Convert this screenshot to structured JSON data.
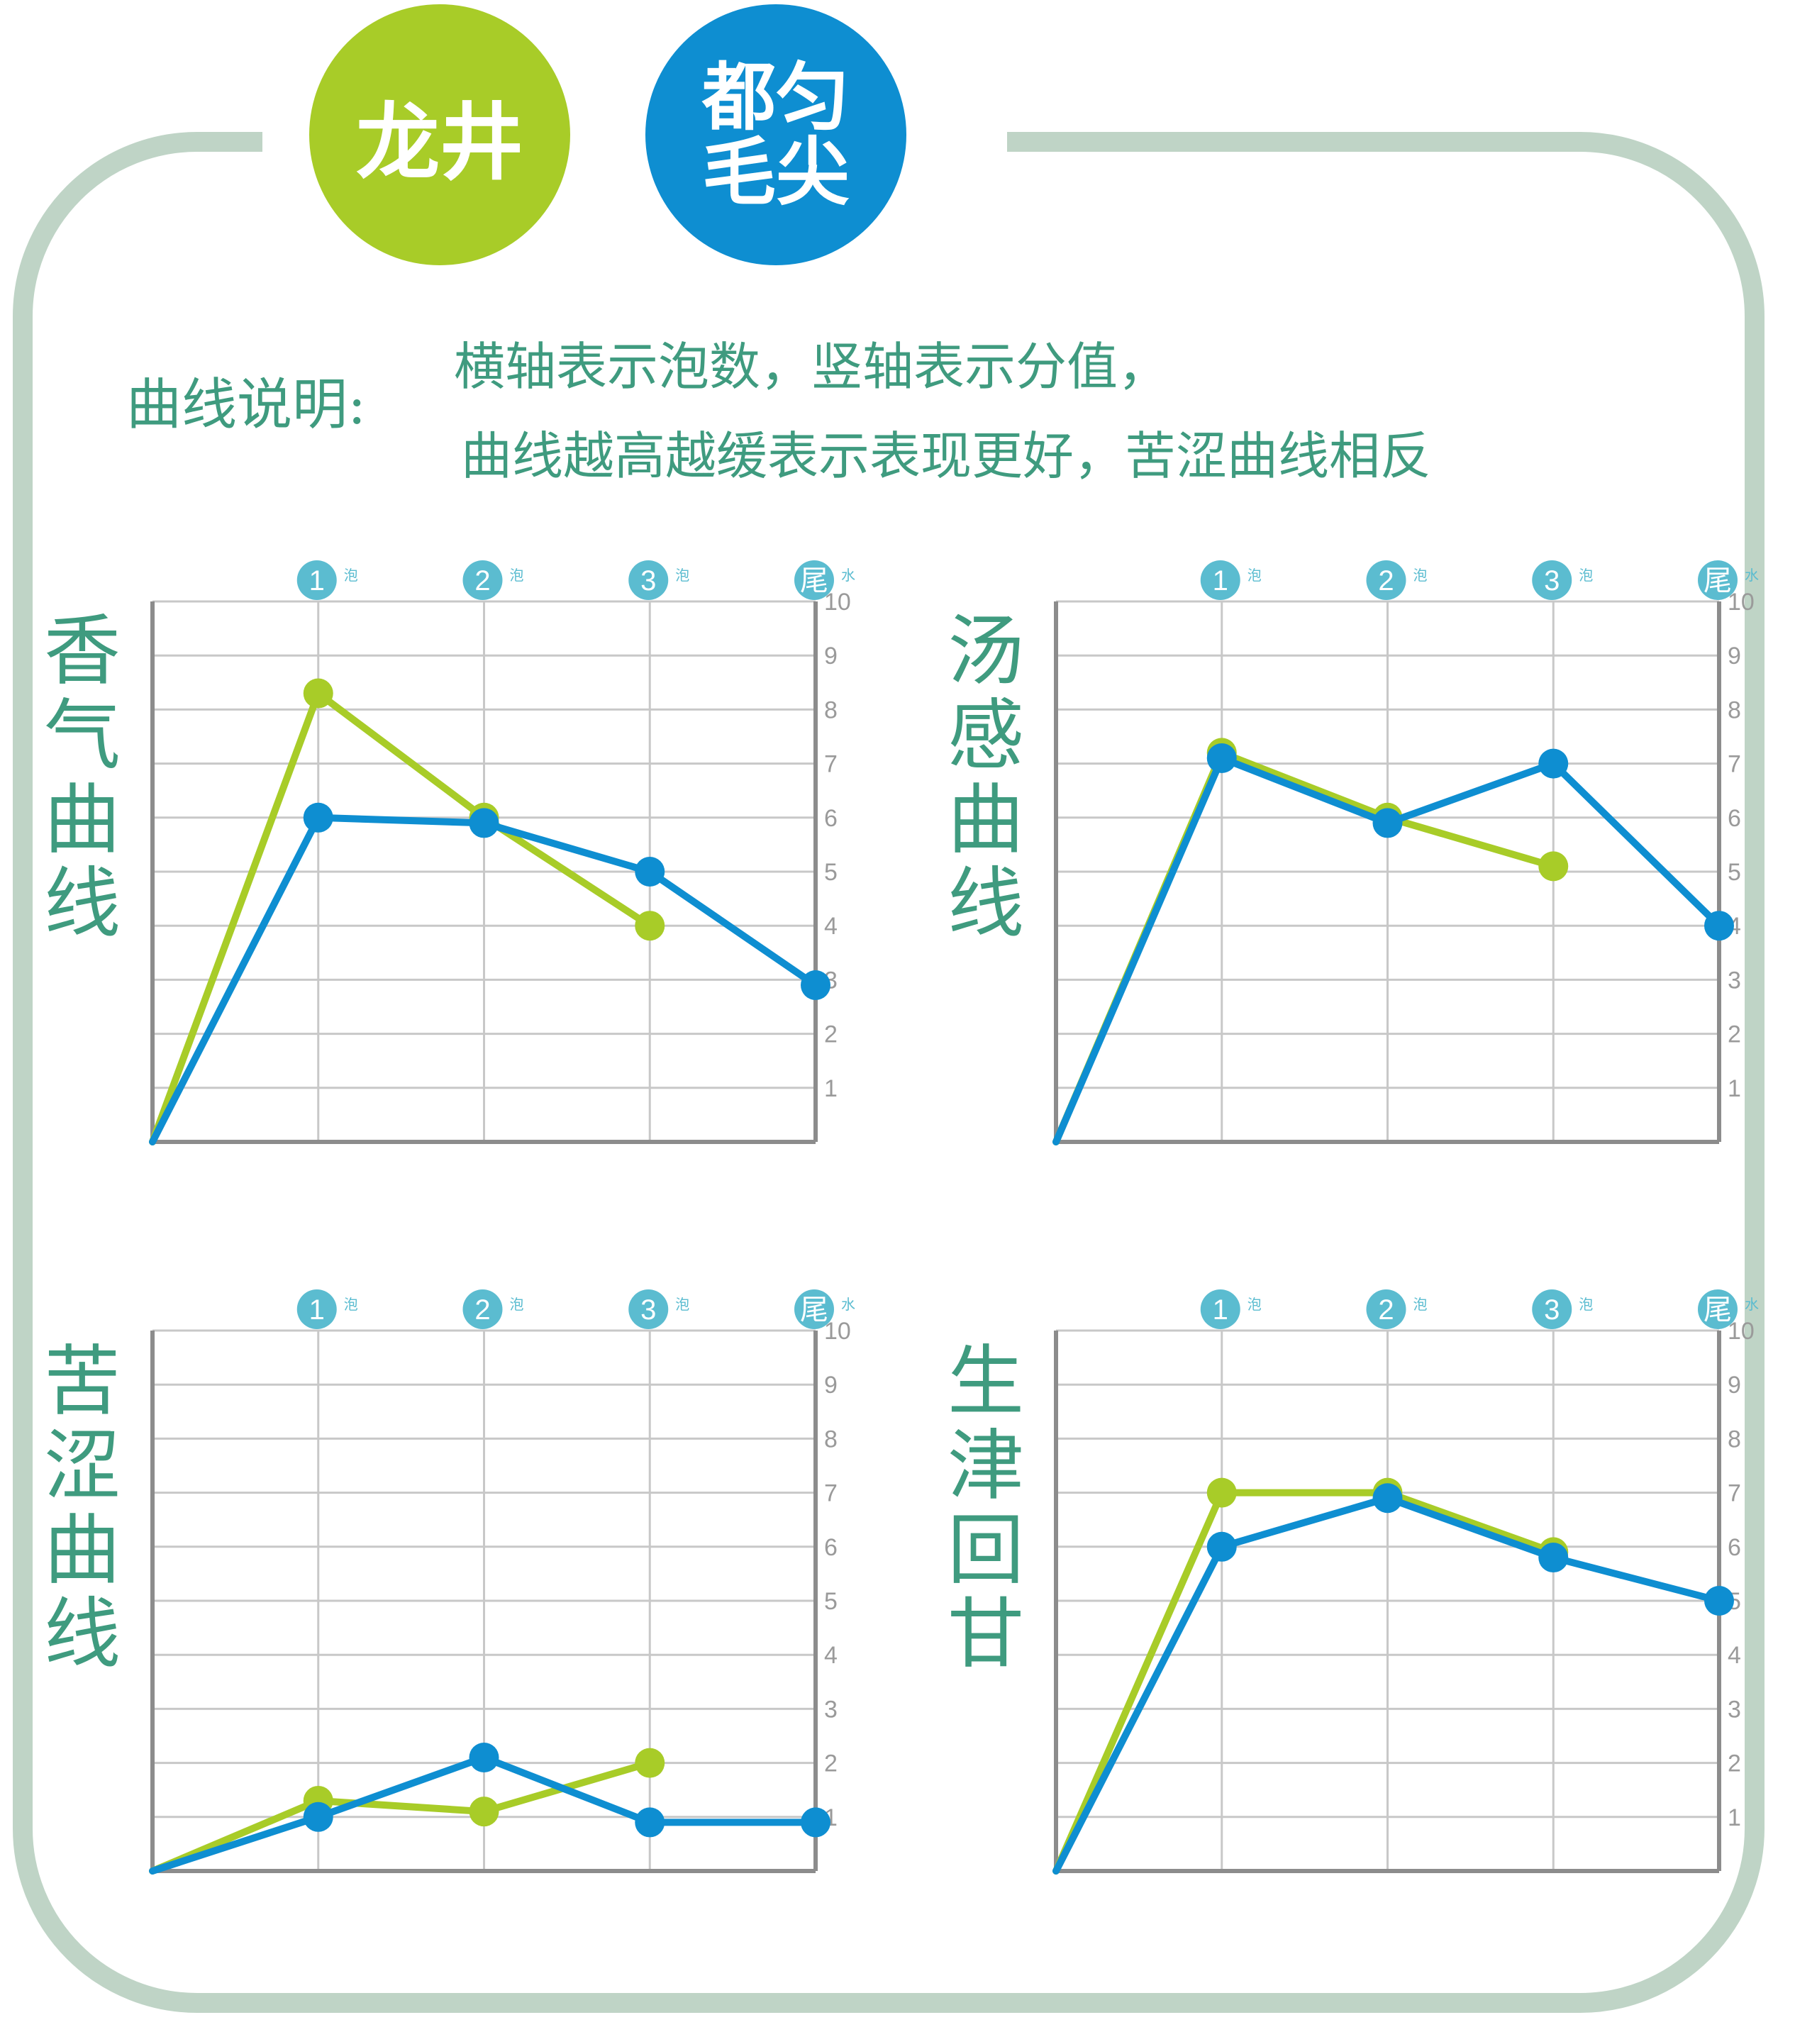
{
  "badges": {
    "longjing": "龙井",
    "duyun_line1": "都匀",
    "duyun_line2": "毛尖"
  },
  "colors": {
    "longjing": "#a8cc28",
    "duyun": "#0e8ed1",
    "text": "#3f9b7f",
    "axis_badge": "#5bbcd0",
    "grid": "#c8c8c8",
    "axis": "#8c8c8c",
    "frame": "#bfd4c6"
  },
  "legend": {
    "label": "曲线说明:",
    "line1": "横轴表示泡数，竖轴表示分值，",
    "line2": "曲线越高越缓表示表现更好，苦涩曲线相反"
  },
  "chart_data": [
    {
      "type": "line",
      "title": "香气曲线",
      "x_ticks": [
        {
          "n": "1",
          "s": "泡"
        },
        {
          "n": "2",
          "s": "泡"
        },
        {
          "n": "3",
          "s": "泡"
        },
        {
          "n": "尾",
          "s": "水"
        }
      ],
      "y_ticks": [
        "1",
        "2",
        "3",
        "4",
        "5",
        "6",
        "7",
        "8",
        "9",
        "10"
      ],
      "ylim": [
        0,
        10
      ],
      "grid": true,
      "series": [
        {
          "key": "longjing",
          "values": [
            0,
            8.3,
            6.0,
            4.0
          ]
        },
        {
          "key": "duyun",
          "values": [
            0,
            6.0,
            5.9,
            5.0,
            2.9
          ]
        }
      ]
    },
    {
      "type": "line",
      "title": "汤感曲线",
      "x_ticks": [
        {
          "n": "1",
          "s": "泡"
        },
        {
          "n": "2",
          "s": "泡"
        },
        {
          "n": "3",
          "s": "泡"
        },
        {
          "n": "尾",
          "s": "水"
        }
      ],
      "y_ticks": [
        "1",
        "2",
        "3",
        "4",
        "5",
        "6",
        "7",
        "8",
        "9",
        "10"
      ],
      "ylim": [
        0,
        10
      ],
      "grid": true,
      "series": [
        {
          "key": "longjing",
          "values": [
            0,
            7.2,
            6.0,
            5.1
          ]
        },
        {
          "key": "duyun",
          "values": [
            0,
            7.1,
            5.9,
            7.0,
            4.0
          ]
        }
      ]
    },
    {
      "type": "line",
      "title": "苦涩曲线",
      "x_ticks": [
        {
          "n": "1",
          "s": "泡"
        },
        {
          "n": "2",
          "s": "泡"
        },
        {
          "n": "3",
          "s": "泡"
        },
        {
          "n": "尾",
          "s": "水"
        }
      ],
      "y_ticks": [
        "1",
        "2",
        "3",
        "4",
        "5",
        "6",
        "7",
        "8",
        "9",
        "10"
      ],
      "ylim": [
        0,
        10
      ],
      "grid": true,
      "series": [
        {
          "key": "longjing",
          "values": [
            0,
            1.3,
            1.1,
            2.0
          ]
        },
        {
          "key": "duyun",
          "values": [
            0,
            1.0,
            2.1,
            0.9,
            0.9
          ]
        }
      ]
    },
    {
      "type": "line",
      "title": "生津回甘",
      "x_ticks": [
        {
          "n": "1",
          "s": "泡"
        },
        {
          "n": "2",
          "s": "泡"
        },
        {
          "n": "3",
          "s": "泡"
        },
        {
          "n": "尾",
          "s": "水"
        }
      ],
      "y_ticks": [
        "1",
        "2",
        "3",
        "4",
        "5",
        "6",
        "7",
        "8",
        "9",
        "10"
      ],
      "ylim": [
        0,
        10
      ],
      "grid": true,
      "series": [
        {
          "key": "longjing",
          "values": [
            0,
            7.0,
            7.0,
            5.9
          ]
        },
        {
          "key": "duyun",
          "values": [
            0,
            6.0,
            6.9,
            5.8,
            5.0
          ]
        }
      ]
    }
  ]
}
